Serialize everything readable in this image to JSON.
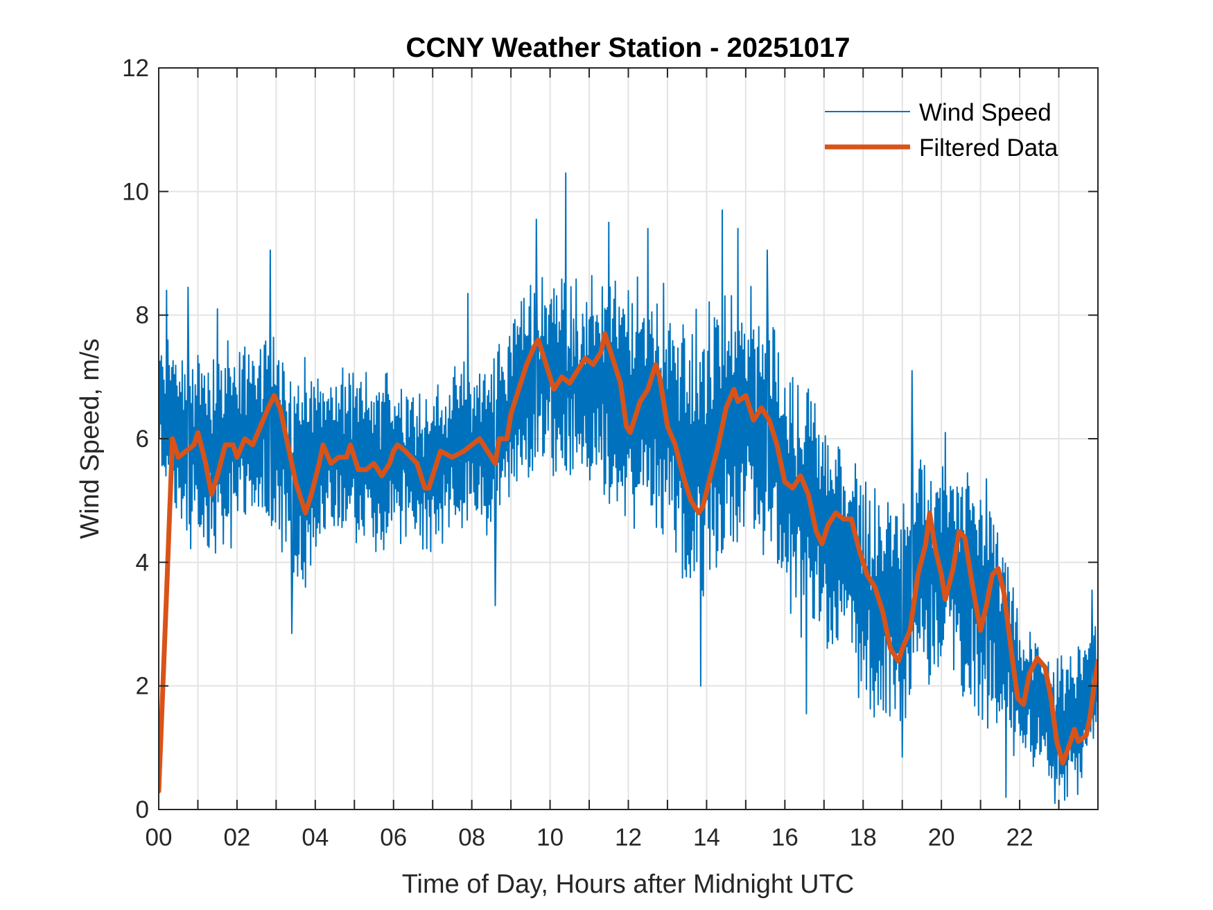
{
  "chart_data": {
    "type": "line",
    "title": "CCNY Weather Station - 20251017",
    "xlabel": "Time of Day, Hours after Midnight UTC",
    "ylabel": "Wind Speed, m/s",
    "xlim": [
      0,
      24
    ],
    "ylim": [
      0,
      12
    ],
    "grid": true,
    "legend_position": "top-right",
    "x_ticks": [
      0,
      2,
      4,
      6,
      8,
      10,
      12,
      14,
      16,
      18,
      20,
      22
    ],
    "x_tick_labels": [
      "00",
      "02",
      "04",
      "06",
      "08",
      "10",
      "12",
      "14",
      "16",
      "18",
      "20",
      "22"
    ],
    "x_minor_ticks": [
      1,
      3,
      5,
      7,
      9,
      11,
      13,
      15,
      17,
      19,
      21,
      23
    ],
    "y_ticks": [
      0,
      2,
      4,
      6,
      8,
      10,
      12
    ],
    "y_tick_labels": [
      "0",
      "2",
      "4",
      "6",
      "8",
      "10",
      "12"
    ],
    "series": [
      {
        "name": "Wind Speed",
        "color": "#0072BD",
        "style": "thin",
        "description": "Raw 1-minute wind speed; dense trace summarized by its approximate envelope per half hour plus notable spikes",
        "envelope_x": [
          0,
          0.5,
          1,
          1.5,
          2,
          2.5,
          3,
          3.5,
          4,
          4.5,
          5,
          5.5,
          6,
          6.5,
          7,
          7.5,
          8,
          8.5,
          9,
          9.5,
          10,
          10.5,
          11,
          11.5,
          12,
          12.5,
          13,
          13.5,
          14,
          14.5,
          15,
          15.5,
          16,
          16.5,
          17,
          17.5,
          18,
          18.5,
          19,
          19.5,
          20,
          20.5,
          21,
          21.5,
          22,
          22.5,
          23,
          23.5,
          24
        ],
        "upper": [
          7.4,
          7.6,
          7.5,
          7.4,
          7.4,
          7.6,
          7.8,
          7.2,
          7.0,
          7.0,
          7.0,
          6.9,
          7.0,
          6.9,
          6.8,
          7.0,
          7.2,
          7.3,
          8.0,
          8.4,
          8.6,
          8.4,
          8.5,
          8.6,
          8.3,
          8.5,
          8.2,
          7.6,
          8.0,
          8.4,
          8.3,
          8.0,
          7.2,
          6.8,
          6.3,
          5.8,
          5.4,
          4.9,
          5.0,
          5.6,
          5.6,
          5.4,
          5.0,
          4.4,
          2.9,
          2.8,
          2.3,
          2.6,
          3.2
        ],
        "lower": [
          5.6,
          4.6,
          4.0,
          4.2,
          4.6,
          4.8,
          4.6,
          3.4,
          4.2,
          4.6,
          4.5,
          4.2,
          4.4,
          4.3,
          4.2,
          4.5,
          4.6,
          4.4,
          5.0,
          5.6,
          5.6,
          5.4,
          5.4,
          5.2,
          4.6,
          4.8,
          4.4,
          3.6,
          3.4,
          4.2,
          4.4,
          4.2,
          3.5,
          3.0,
          2.8,
          2.4,
          1.8,
          1.3,
          1.6,
          2.4,
          2.2,
          2.0,
          1.6,
          1.2,
          0.8,
          0.8,
          0.3,
          0.4,
          1.0
        ],
        "spikes": [
          {
            "x": 0.2,
            "y": 8.4
          },
          {
            "x": 0.75,
            "y": 8.45
          },
          {
            "x": 1.5,
            "y": 8.1
          },
          {
            "x": 2.85,
            "y": 9.05
          },
          {
            "x": 3.4,
            "y": 2.85
          },
          {
            "x": 7.9,
            "y": 8.35
          },
          {
            "x": 8.6,
            "y": 3.3
          },
          {
            "x": 9.65,
            "y": 9.55
          },
          {
            "x": 10.4,
            "y": 10.3
          },
          {
            "x": 11.5,
            "y": 9.5
          },
          {
            "x": 12.5,
            "y": 9.4
          },
          {
            "x": 13.85,
            "y": 2.0
          },
          {
            "x": 14.4,
            "y": 9.7
          },
          {
            "x": 14.8,
            "y": 9.4
          },
          {
            "x": 15.55,
            "y": 9.05
          },
          {
            "x": 16.55,
            "y": 1.55
          },
          {
            "x": 19.0,
            "y": 0.85
          },
          {
            "x": 19.25,
            "y": 7.1
          },
          {
            "x": 20.1,
            "y": 6.1
          },
          {
            "x": 21.15,
            "y": 5.35
          },
          {
            "x": 21.65,
            "y": 0.2
          },
          {
            "x": 22.9,
            "y": 0.1
          },
          {
            "x": 23.85,
            "y": 3.55
          }
        ]
      },
      {
        "name": "Filtered Data",
        "color": "#D95319",
        "style": "thick",
        "x": [
          0,
          0.2,
          0.35,
          0.5,
          0.7,
          0.9,
          1.0,
          1.2,
          1.35,
          1.5,
          1.7,
          1.9,
          2.0,
          2.2,
          2.4,
          2.6,
          2.8,
          2.95,
          3.1,
          3.3,
          3.5,
          3.75,
          3.9,
          4.1,
          4.2,
          4.4,
          4.6,
          4.8,
          4.9,
          5.1,
          5.3,
          5.5,
          5.7,
          5.9,
          6.0,
          6.1,
          6.3,
          6.6,
          6.8,
          6.9,
          7.1,
          7.2,
          7.5,
          7.8,
          8.0,
          8.2,
          8.4,
          8.6,
          8.7,
          8.9,
          9.0,
          9.2,
          9.4,
          9.6,
          9.7,
          9.9,
          10.1,
          10.3,
          10.5,
          10.7,
          10.9,
          11.1,
          11.3,
          11.4,
          11.6,
          11.8,
          11.95,
          12.05,
          12.3,
          12.5,
          12.7,
          12.8,
          13.0,
          13.2,
          13.4,
          13.6,
          13.8,
          13.9,
          14.1,
          14.3,
          14.5,
          14.7,
          14.8,
          15.0,
          15.2,
          15.4,
          15.6,
          15.8,
          16.0,
          16.2,
          16.4,
          16.6,
          16.8,
          16.95,
          17.1,
          17.3,
          17.5,
          17.7,
          17.9,
          18.1,
          18.3,
          18.5,
          18.7,
          18.9,
          19.0,
          19.2,
          19.4,
          19.6,
          19.7,
          19.85,
          20.0,
          20.1,
          20.3,
          20.45,
          20.6,
          20.8,
          21.0,
          21.15,
          21.3,
          21.45,
          21.6,
          21.8,
          21.95,
          22.1,
          22.25,
          22.45,
          22.65,
          22.8,
          22.95,
          23.1,
          23.3,
          23.4,
          23.5,
          23.7,
          23.8,
          23.9,
          24.0
        ],
        "y": [
          0.3,
          3.5,
          6.0,
          5.7,
          5.8,
          5.9,
          6.1,
          5.6,
          5.1,
          5.4,
          5.9,
          5.9,
          5.7,
          6.0,
          5.9,
          6.2,
          6.5,
          6.7,
          6.5,
          5.9,
          5.3,
          4.8,
          5.1,
          5.6,
          5.9,
          5.6,
          5.7,
          5.7,
          5.9,
          5.5,
          5.5,
          5.6,
          5.4,
          5.6,
          5.8,
          5.9,
          5.8,
          5.6,
          5.2,
          5.2,
          5.6,
          5.8,
          5.7,
          5.8,
          5.9,
          6.0,
          5.8,
          5.6,
          6.0,
          6.0,
          6.4,
          6.8,
          7.2,
          7.5,
          7.6,
          7.2,
          6.8,
          7.0,
          6.9,
          7.1,
          7.3,
          7.2,
          7.4,
          7.7,
          7.3,
          6.9,
          6.2,
          6.1,
          6.6,
          6.8,
          7.2,
          7.0,
          6.2,
          5.9,
          5.4,
          5.0,
          4.8,
          4.9,
          5.4,
          5.9,
          6.5,
          6.8,
          6.6,
          6.7,
          6.3,
          6.5,
          6.3,
          5.9,
          5.3,
          5.2,
          5.4,
          5.1,
          4.5,
          4.3,
          4.6,
          4.8,
          4.7,
          4.7,
          4.2,
          3.8,
          3.6,
          3.2,
          2.6,
          2.4,
          2.6,
          2.9,
          3.8,
          4.3,
          4.8,
          4.2,
          3.8,
          3.4,
          3.9,
          4.5,
          4.4,
          3.6,
          2.9,
          3.3,
          3.8,
          3.9,
          3.5,
          2.5,
          1.8,
          1.7,
          2.2,
          2.45,
          2.3,
          1.8,
          1.1,
          0.75,
          1.1,
          1.3,
          1.1,
          1.2,
          1.5,
          2.0,
          2.4
        ]
      }
    ]
  }
}
